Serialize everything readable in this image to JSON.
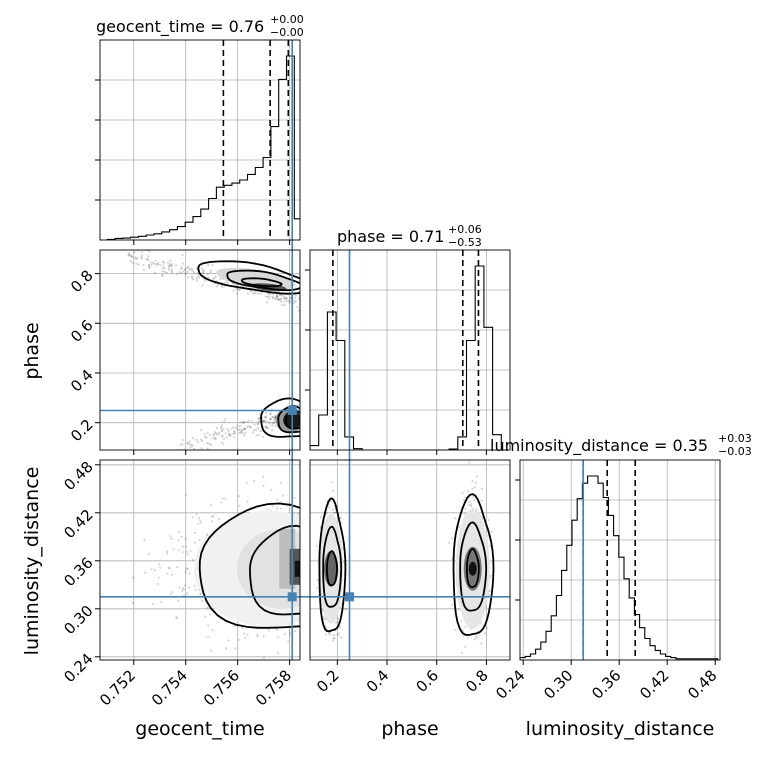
{
  "chart_data": {
    "type": "corner",
    "parameters": [
      "geocent_time",
      "phase",
      "luminosity_distance"
    ],
    "colors": {
      "truth": "#4682b4",
      "hist": "#000000",
      "grid": "#b0b0b0",
      "contour": "#000000"
    },
    "grid": true,
    "axis_labels": {
      "x": [
        "geocent_time",
        "phase",
        "luminosity_distance"
      ],
      "y_row1": "phase",
      "y_row2": "luminosity_distance"
    },
    "titles": [
      {
        "param": "geocent_time",
        "text": "geocent_time = 0.76",
        "sup": "+0.00",
        "sub": "−0.00"
      },
      {
        "param": "phase",
        "text": "phase = 0.71",
        "sup": "+0.06",
        "sub": "−0.53"
      },
      {
        "param": "luminosity_distance",
        "text": "luminosity_distance = 0.35",
        "sup": "+0.03",
        "sub": "−0.03"
      }
    ],
    "ticks": {
      "geocent_time": {
        "values": [
          0.752,
          0.754,
          0.756,
          0.758
        ],
        "labels": [
          "0.752",
          "0.754",
          "0.756",
          "0.758"
        ]
      },
      "phase": {
        "values": [
          0.2,
          0.4,
          0.6,
          0.8
        ],
        "labels": [
          "0.2",
          "0.4",
          "0.6",
          "0.8"
        ]
      },
      "luminosity_distance": {
        "values": [
          0.24,
          0.3,
          0.36,
          0.42,
          0.48
        ],
        "labels": [
          "0.24",
          "0.30",
          "0.36",
          "0.42",
          "0.48"
        ]
      }
    },
    "ranges": {
      "geocent_time": [
        0.7507,
        0.7584
      ],
      "phase": [
        0.09,
        0.895
      ],
      "luminosity_distance": [
        0.236,
        0.486
      ]
    },
    "truths": {
      "geocent_time": 0.7581,
      "phase": 0.249,
      "luminosity_distance": 0.315
    },
    "quantiles": {
      "geocent_time": [
        0.75545,
        0.75725,
        0.75795
      ],
      "phase": [
        0.182,
        0.705,
        0.768
      ],
      "luminosity_distance": [
        0.315,
        0.345,
        0.38
      ]
    },
    "histograms": {
      "geocent_time": {
        "edges": [
          0.75098,
          0.75128,
          0.75158,
          0.75188,
          0.75218,
          0.75248,
          0.75278,
          0.75308,
          0.75338,
          0.75368,
          0.75398,
          0.75428,
          0.75458,
          0.75488,
          0.75518,
          0.75548,
          0.75578,
          0.75608,
          0.75638,
          0.75668,
          0.75698,
          0.75728,
          0.75758,
          0.75788,
          0.75818,
          0.75848
        ],
        "values": [
          0.2,
          0.5,
          0.6,
          0.9,
          1.2,
          1.6,
          2.0,
          2.6,
          3.3,
          4.3,
          5.7,
          7.5,
          9.9,
          13.3,
          16.9,
          17.5,
          18.2,
          19.2,
          21.0,
          23.2,
          26.4,
          36.3,
          51.4,
          58.9,
          6.8
        ]
      },
      "phase": {
        "edges": [
          0.09,
          0.125,
          0.16,
          0.195,
          0.23,
          0.265,
          0.3,
          0.335,
          0.37,
          0.405,
          0.44,
          0.475,
          0.51,
          0.545,
          0.58,
          0.615,
          0.65,
          0.685,
          0.72,
          0.755,
          0.79,
          0.825,
          0.86
        ],
        "values": [
          1.0,
          8.0,
          31.5,
          25.0,
          3.0,
          0.3,
          0,
          0,
          0,
          0,
          0,
          0,
          0,
          0,
          0,
          0,
          0.2,
          3.0,
          25.0,
          42.0,
          28.0,
          3.5
        ]
      },
      "luminosity_distance": {
        "edges": [
          0.236,
          0.2425,
          0.249,
          0.2555,
          0.262,
          0.2685,
          0.275,
          0.2815,
          0.288,
          0.2945,
          0.301,
          0.3075,
          0.314,
          0.3205,
          0.327,
          0.3335,
          0.34,
          0.3465,
          0.353,
          0.3595,
          0.366,
          0.3725,
          0.379,
          0.3855,
          0.392,
          0.3985,
          0.405,
          0.4115,
          0.418,
          0.4245,
          0.431,
          0.4375,
          0.444,
          0.4505,
          0.457,
          0.4635,
          0.47,
          0.4765,
          0.483
        ],
        "values": [
          0.2,
          0.3,
          0.5,
          0.9,
          1.5,
          2.4,
          3.7,
          5.4,
          7.5,
          9.6,
          11.7,
          13.5,
          14.8,
          15.4,
          15.4,
          14.8,
          13.6,
          12.1,
          10.4,
          8.6,
          6.8,
          5.2,
          3.8,
          2.7,
          1.8,
          1.2,
          0.8,
          0.5,
          0.3,
          0.2,
          0.1,
          0.1,
          0.1,
          0.1,
          0.1,
          0.1,
          0.1,
          0.1
        ]
      }
    },
    "panels_2d": [
      {
        "x": "geocent_time",
        "y": "phase"
      },
      {
        "x": "geocent_time",
        "y": "luminosity_distance"
      },
      {
        "x": "phase",
        "y": "luminosity_distance"
      }
    ]
  }
}
